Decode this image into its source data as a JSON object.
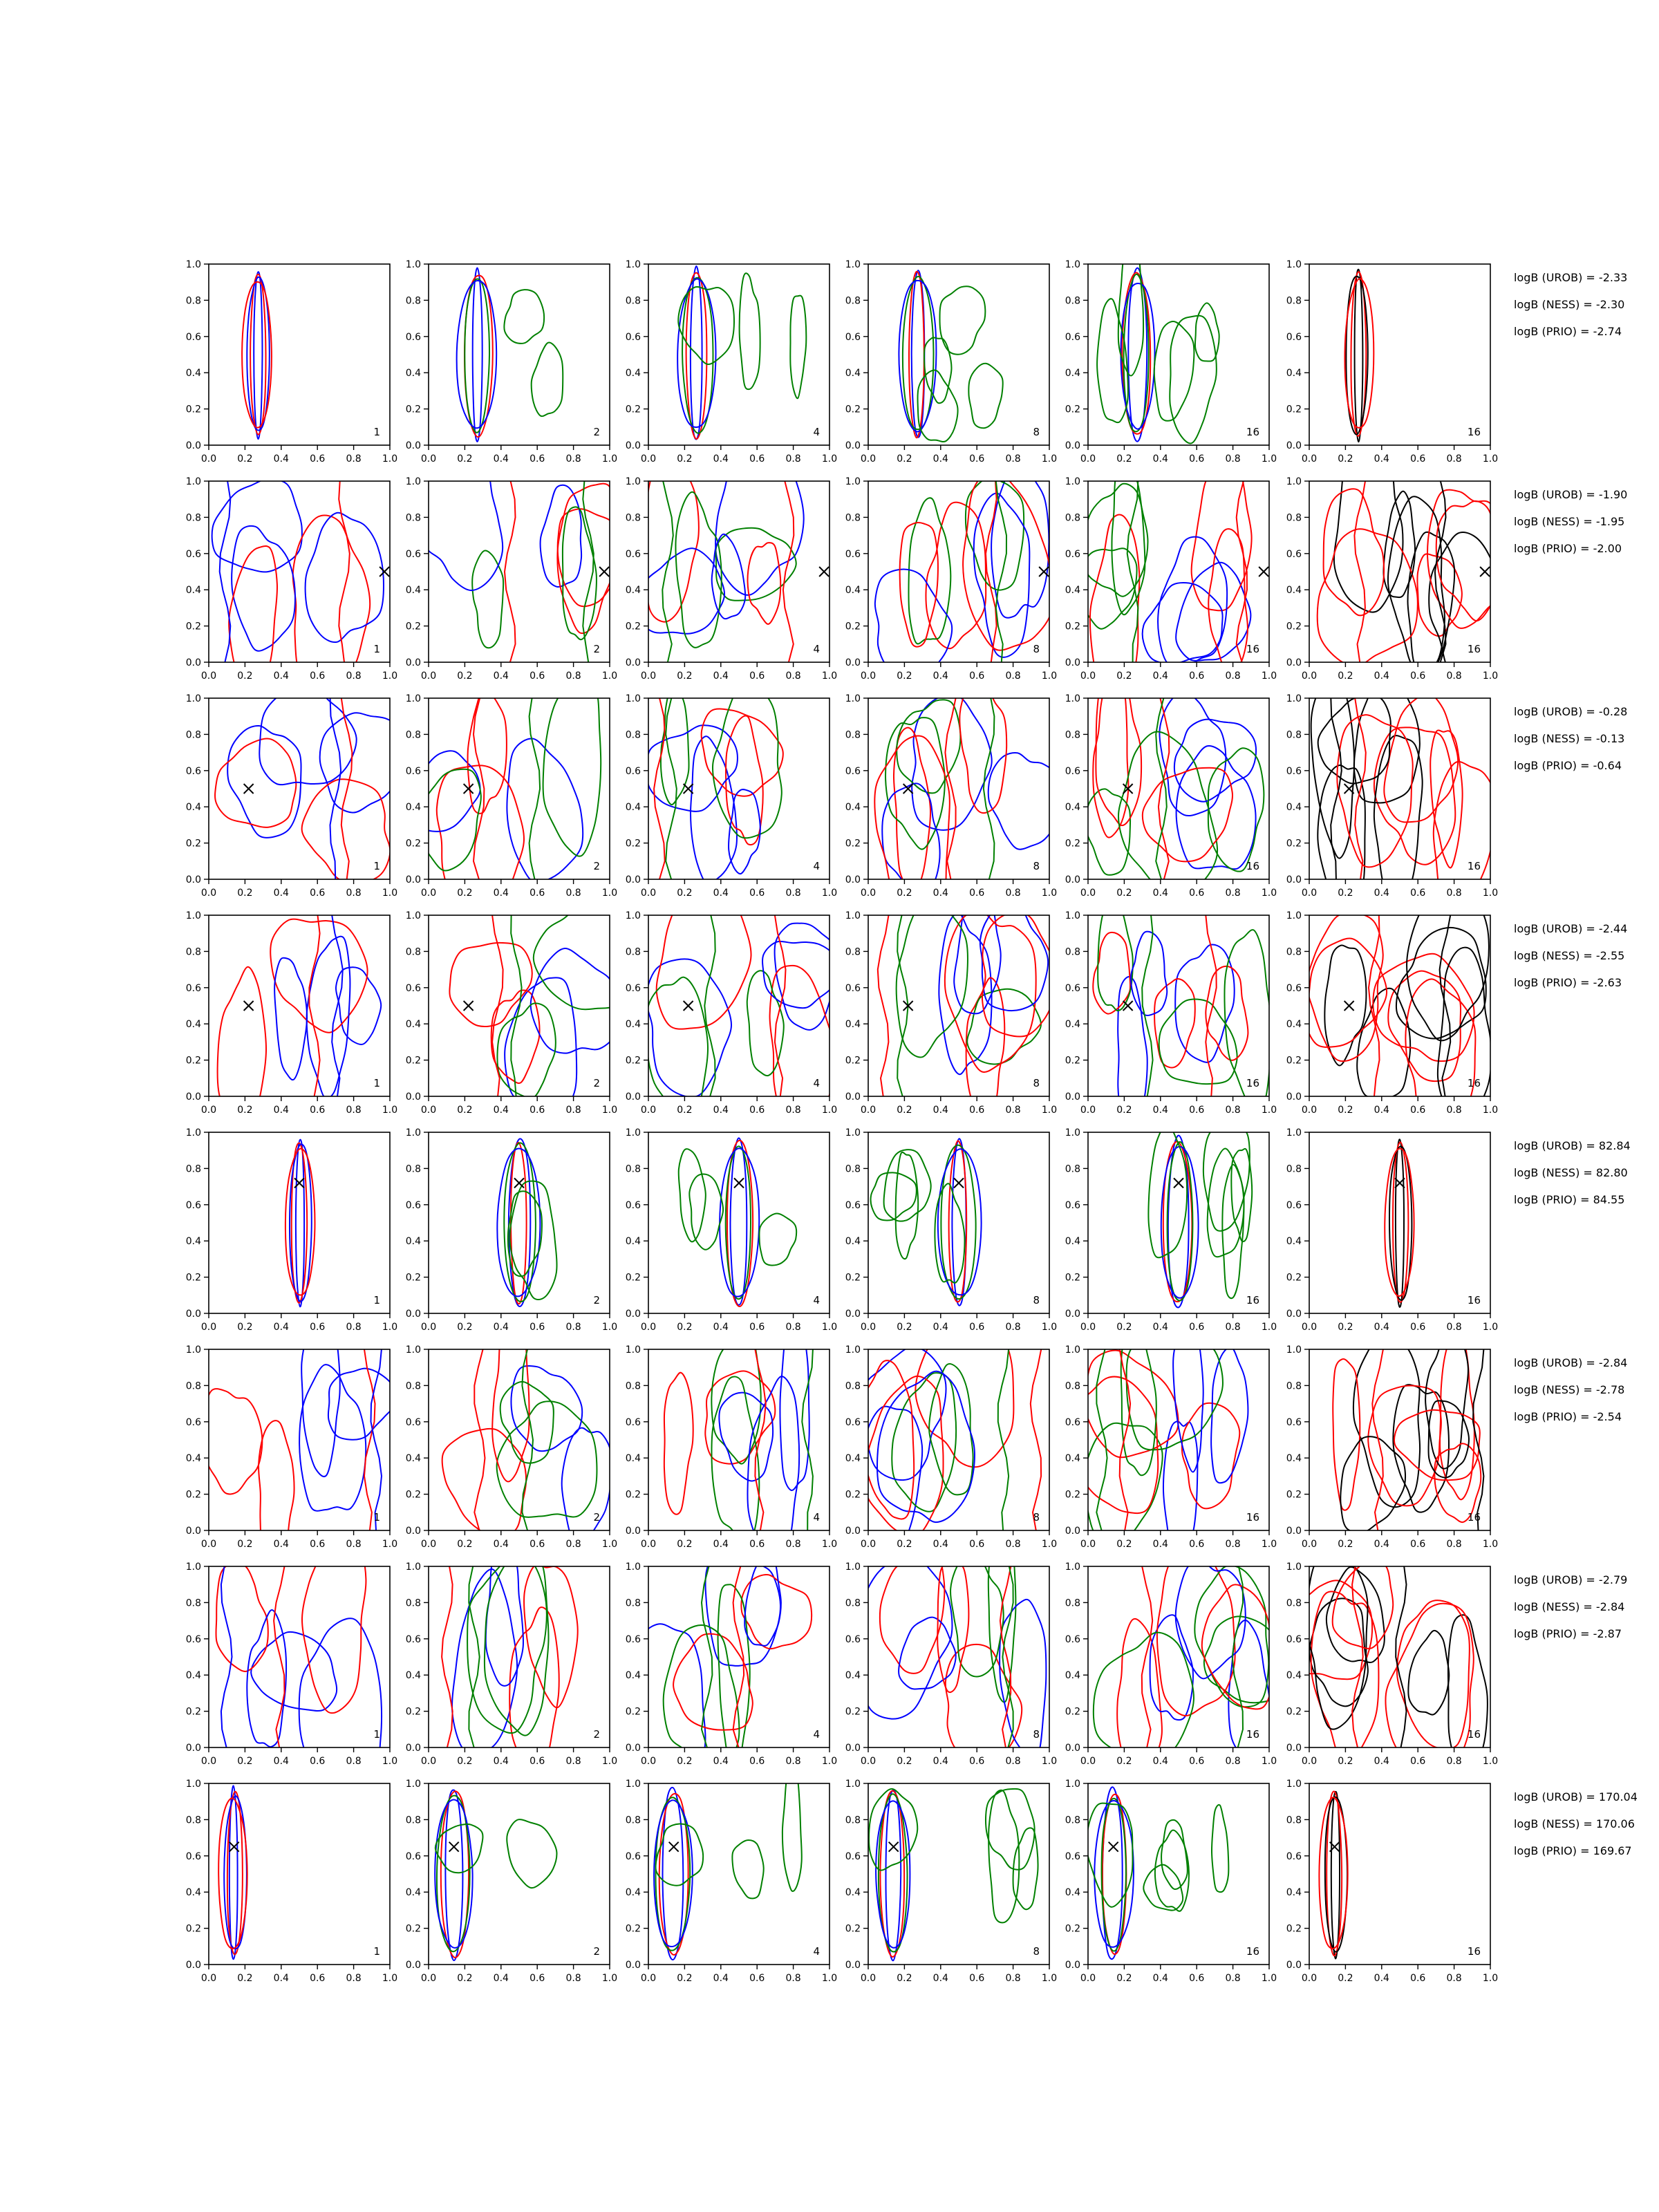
{
  "figure": {
    "colors": {
      "blue": "#0000ff",
      "red": "#ff0000",
      "green": "#008000",
      "black": "#000000",
      "axis": "#000000"
    },
    "panel_labels": [
      "1",
      "2",
      "4",
      "8",
      "16",
      "16"
    ],
    "axis_ticks": [
      "0.0",
      "0.2",
      "0.4",
      "0.6",
      "0.8",
      "1.0"
    ]
  },
  "chart_data": [
    {
      "type": "contour",
      "row": 1,
      "marker": null,
      "xlim": [
        0,
        1
      ],
      "ylim": [
        0,
        1
      ],
      "stats": [
        "logB (UROB) = -2.33",
        "logB (NESS) = -2.30",
        "logB (PRIO) = -2.74"
      ],
      "style": "narrow",
      "center": [
        0.27,
        0.5
      ]
    },
    {
      "type": "contour",
      "row": 2,
      "marker": [
        0.97,
        0.5
      ],
      "xlim": [
        0,
        1
      ],
      "ylim": [
        0,
        1
      ],
      "stats": [
        "logB (UROB) = -1.90",
        "logB (NESS) = -1.95",
        "logB (PRIO) = -2.00"
      ],
      "style": "diffuse"
    },
    {
      "type": "contour",
      "row": 3,
      "marker": [
        0.22,
        0.5
      ],
      "xlim": [
        0,
        1
      ],
      "ylim": [
        0,
        1
      ],
      "stats": [
        "logB (UROB) = -0.28",
        "logB (NESS) = -0.13",
        "logB (PRIO) = -0.64"
      ],
      "style": "diffuse"
    },
    {
      "type": "contour",
      "row": 4,
      "marker": [
        0.22,
        0.5
      ],
      "xlim": [
        0,
        1
      ],
      "ylim": [
        0,
        1
      ],
      "stats": [
        "logB (UROB) = -2.44",
        "logB (NESS) = -2.55",
        "logB (PRIO) = -2.63"
      ],
      "style": "diffuse"
    },
    {
      "type": "contour",
      "row": 5,
      "marker": [
        0.5,
        0.72
      ],
      "xlim": [
        0,
        1
      ],
      "ylim": [
        0,
        1
      ],
      "stats": [
        "logB (UROB) = 82.84",
        "logB (NESS) = 82.80",
        "logB (PRIO) = 84.55"
      ],
      "style": "narrow",
      "center": [
        0.5,
        0.5
      ]
    },
    {
      "type": "contour",
      "row": 6,
      "marker": null,
      "xlim": [
        0,
        1
      ],
      "ylim": [
        0,
        1
      ],
      "stats": [
        "logB (UROB) = -2.84",
        "logB (NESS) = -2.78",
        "logB (PRIO) = -2.54"
      ],
      "style": "diffuse"
    },
    {
      "type": "contour",
      "row": 7,
      "marker": null,
      "xlim": [
        0,
        1
      ],
      "ylim": [
        0,
        1
      ],
      "stats": [
        "logB (UROB) = -2.79",
        "logB (NESS) = -2.84",
        "logB (PRIO) = -2.87"
      ],
      "style": "diffuse"
    },
    {
      "type": "contour",
      "row": 8,
      "marker": [
        0.14,
        0.65
      ],
      "xlim": [
        0,
        1
      ],
      "ylim": [
        0,
        1
      ],
      "stats": [
        "logB (UROB) = 170.04",
        "logB (NESS) = 170.06",
        "logB (PRIO) = 169.67"
      ],
      "style": "narrow",
      "center": [
        0.14,
        0.5
      ]
    }
  ]
}
